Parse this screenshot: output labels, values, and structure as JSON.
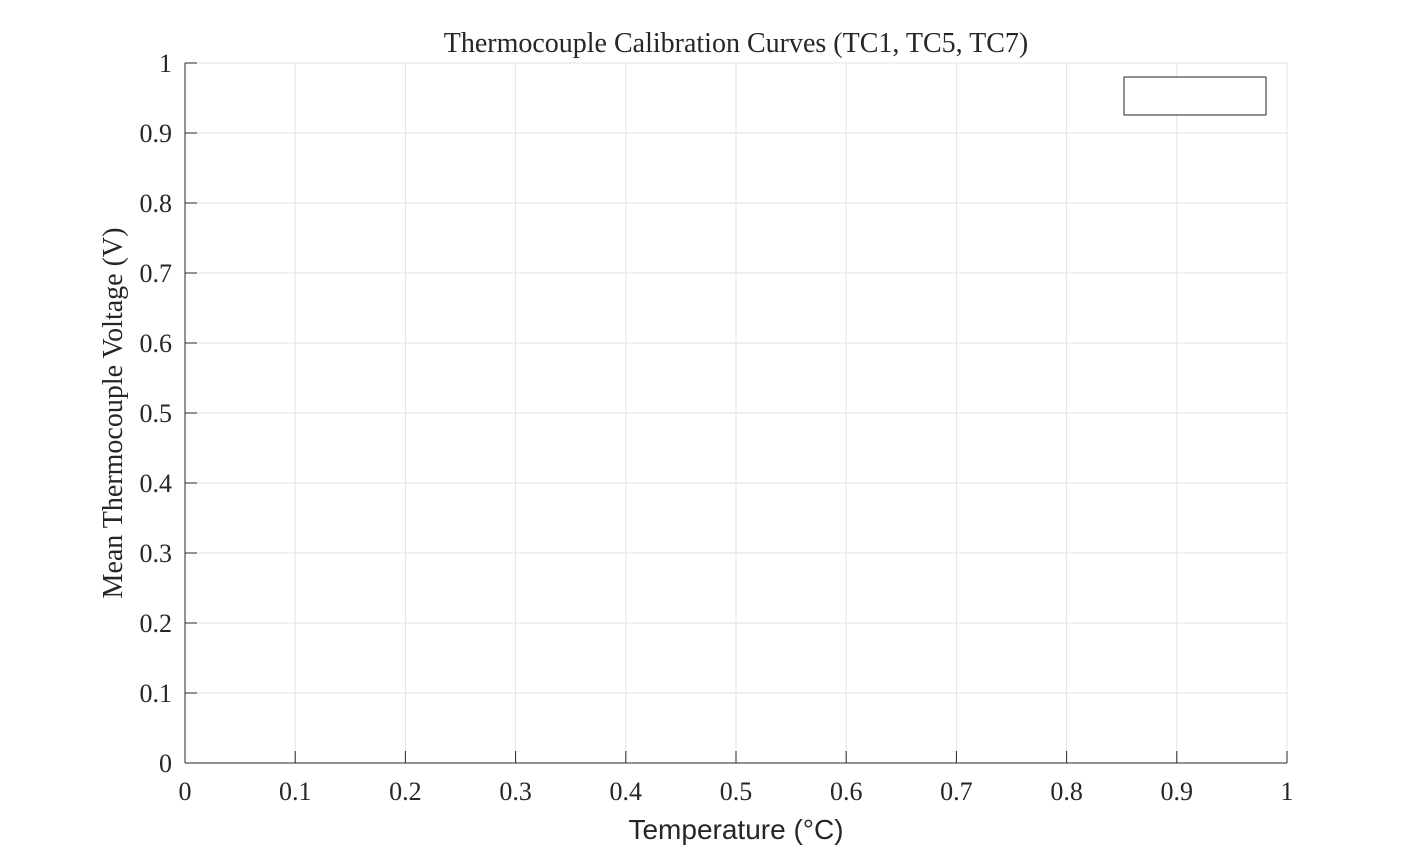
{
  "chart_data": {
    "type": "line",
    "title": "Thermocouple Calibration Curves (TC1, TC5, TC7)",
    "xlabel": "Temperature (°C)",
    "ylabel": "Mean Thermocouple Voltage (V)",
    "xlim": [
      0,
      1
    ],
    "ylim": [
      0,
      1
    ],
    "xticks": [
      0,
      0.1,
      0.2,
      0.3,
      0.4,
      0.5,
      0.6,
      0.7,
      0.8,
      0.9,
      1
    ],
    "yticks": [
      0,
      0.1,
      0.2,
      0.3,
      0.4,
      0.5,
      0.6,
      0.7,
      0.8,
      0.9,
      1
    ],
    "xtick_labels": [
      "0",
      "0.1",
      "0.2",
      "0.3",
      "0.4",
      "0.5",
      "0.6",
      "0.7",
      "0.8",
      "0.9",
      "1"
    ],
    "ytick_labels": [
      "0",
      "0.1",
      "0.2",
      "0.3",
      "0.4",
      "0.5",
      "0.6",
      "0.7",
      "0.8",
      "0.9",
      "1"
    ],
    "grid": true,
    "legend": {
      "placement": "top-right",
      "entries": []
    },
    "series": [],
    "colors": {
      "axis": "#262626",
      "grid": "#e3e3e3",
      "legend_border": "#262626",
      "text": "#262626"
    }
  }
}
